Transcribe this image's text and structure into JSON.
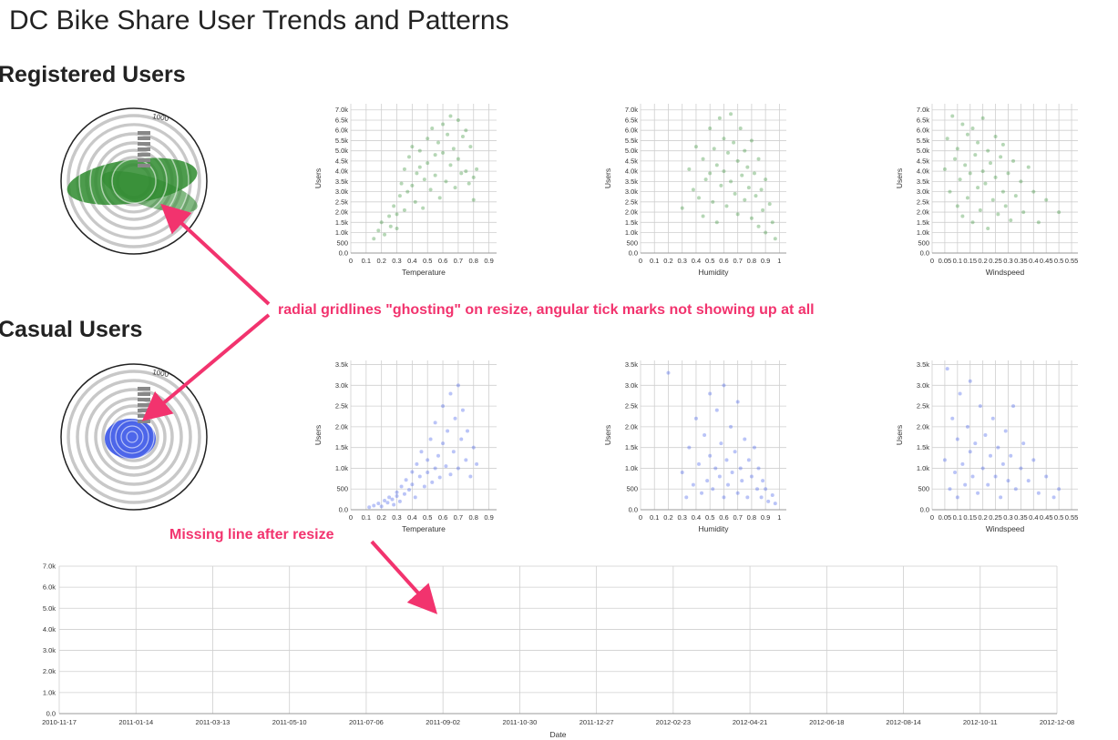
{
  "page": {
    "title": "DC Bike Share User Trends and Patterns"
  },
  "sections": {
    "registered": {
      "title": "Registered Users",
      "color": "#2e8b2e"
    },
    "casual": {
      "title": "Casual Users",
      "color": "#3a55e8"
    }
  },
  "annotations": {
    "radial_note": "radial gridlines \"ghosting\" on resize, angular tick marks not showing up at all",
    "line_note": "Missing line after resize",
    "arrow_color": "#f2336e"
  },
  "radial": {
    "top_label": "1000"
  },
  "chart_data": [
    {
      "id": "reg-temperature",
      "type": "scatter",
      "section": "registered",
      "xlabel": "Temperature",
      "ylabel": "Users",
      "xticks": [
        "0",
        "0.1",
        "0.2",
        "0.3",
        "0.4",
        "0.5",
        "0.6",
        "0.7",
        "0.8",
        "0.9"
      ],
      "yticks": [
        "0.0",
        "500",
        "1.0k",
        "1.5k",
        "2.0k",
        "2.5k",
        "3.0k",
        "3.5k",
        "4.0k",
        "4.5k",
        "5.0k",
        "5.5k",
        "6.0k",
        "6.5k",
        "7.0k"
      ],
      "xlim": [
        0,
        0.95
      ],
      "ylim": [
        0,
        7300
      ],
      "points": [
        [
          0.15,
          700
        ],
        [
          0.18,
          1100
        ],
        [
          0.2,
          1500
        ],
        [
          0.22,
          900
        ],
        [
          0.25,
          1800
        ],
        [
          0.26,
          1300
        ],
        [
          0.28,
          2300
        ],
        [
          0.3,
          1900
        ],
        [
          0.3,
          1200
        ],
        [
          0.32,
          2800
        ],
        [
          0.33,
          3400
        ],
        [
          0.35,
          2100
        ],
        [
          0.35,
          4100
        ],
        [
          0.37,
          3000
        ],
        [
          0.38,
          4700
        ],
        [
          0.4,
          5200
        ],
        [
          0.4,
          3300
        ],
        [
          0.42,
          2500
        ],
        [
          0.43,
          3900
        ],
        [
          0.45,
          5000
        ],
        [
          0.45,
          4200
        ],
        [
          0.47,
          2200
        ],
        [
          0.48,
          3600
        ],
        [
          0.5,
          5600
        ],
        [
          0.5,
          4400
        ],
        [
          0.52,
          3100
        ],
        [
          0.53,
          6100
        ],
        [
          0.55,
          4800
        ],
        [
          0.55,
          3800
        ],
        [
          0.57,
          5400
        ],
        [
          0.58,
          2700
        ],
        [
          0.6,
          6300
        ],
        [
          0.6,
          4900
        ],
        [
          0.62,
          3500
        ],
        [
          0.63,
          5800
        ],
        [
          0.65,
          6700
        ],
        [
          0.65,
          4300
        ],
        [
          0.67,
          5100
        ],
        [
          0.68,
          3200
        ],
        [
          0.7,
          6500
        ],
        [
          0.7,
          4600
        ],
        [
          0.72,
          3900
        ],
        [
          0.73,
          5700
        ],
        [
          0.75,
          6000
        ],
        [
          0.75,
          4000
        ],
        [
          0.77,
          3400
        ],
        [
          0.78,
          5200
        ],
        [
          0.8,
          3700
        ],
        [
          0.8,
          2600
        ],
        [
          0.82,
          4100
        ]
      ]
    },
    {
      "id": "reg-humidity",
      "type": "scatter",
      "section": "registered",
      "xlabel": "Humidity",
      "ylabel": "Users",
      "xticks": [
        "0",
        "0.1",
        "0.2",
        "0.3",
        "0.4",
        "0.5",
        "0.6",
        "0.7",
        "0.8",
        "0.9",
        "1"
      ],
      "yticks": [
        "0.0",
        "500",
        "1.0k",
        "1.5k",
        "2.0k",
        "2.5k",
        "3.0k",
        "3.5k",
        "4.0k",
        "4.5k",
        "5.0k",
        "5.5k",
        "6.0k",
        "6.5k",
        "7.0k"
      ],
      "xlim": [
        0,
        1.05
      ],
      "ylim": [
        0,
        7300
      ],
      "points": [
        [
          0.3,
          2200
        ],
        [
          0.35,
          4100
        ],
        [
          0.38,
          3100
        ],
        [
          0.4,
          5200
        ],
        [
          0.42,
          2700
        ],
        [
          0.45,
          4600
        ],
        [
          0.45,
          1800
        ],
        [
          0.47,
          3600
        ],
        [
          0.5,
          6100
        ],
        [
          0.5,
          3900
        ],
        [
          0.52,
          2500
        ],
        [
          0.53,
          5100
        ],
        [
          0.55,
          4300
        ],
        [
          0.55,
          1500
        ],
        [
          0.57,
          6600
        ],
        [
          0.58,
          3300
        ],
        [
          0.6,
          5600
        ],
        [
          0.6,
          4000
        ],
        [
          0.62,
          2300
        ],
        [
          0.63,
          4900
        ],
        [
          0.65,
          6800
        ],
        [
          0.65,
          3500
        ],
        [
          0.67,
          5400
        ],
        [
          0.68,
          2900
        ],
        [
          0.7,
          4500
        ],
        [
          0.7,
          1900
        ],
        [
          0.72,
          6100
        ],
        [
          0.73,
          3800
        ],
        [
          0.75,
          5000
        ],
        [
          0.75,
          2600
        ],
        [
          0.77,
          4200
        ],
        [
          0.78,
          3200
        ],
        [
          0.8,
          5500
        ],
        [
          0.8,
          1700
        ],
        [
          0.82,
          3900
        ],
        [
          0.83,
          2800
        ],
        [
          0.85,
          4600
        ],
        [
          0.85,
          1300
        ],
        [
          0.87,
          3100
        ],
        [
          0.88,
          2100
        ],
        [
          0.9,
          3600
        ],
        [
          0.9,
          1000
        ],
        [
          0.93,
          2400
        ],
        [
          0.95,
          1500
        ],
        [
          0.97,
          700
        ]
      ]
    },
    {
      "id": "reg-windspeed",
      "type": "scatter",
      "section": "registered",
      "xlabel": "Windspeed",
      "ylabel": "Users",
      "xticks": [
        "0",
        "0.05",
        "0.1",
        "0.15",
        "0.2",
        "0.25",
        "0.3",
        "0.35",
        "0.4",
        "0.45",
        "0.5",
        "0.55"
      ],
      "yticks": [
        "0.0",
        "500",
        "1.0k",
        "1.5k",
        "2.0k",
        "2.5k",
        "3.0k",
        "3.5k",
        "4.0k",
        "4.5k",
        "5.0k",
        "5.5k",
        "6.0k",
        "6.5k",
        "7.0k"
      ],
      "xlim": [
        0,
        0.575
      ],
      "ylim": [
        0,
        7300
      ],
      "points": [
        [
          0.05,
          4100
        ],
        [
          0.06,
          5600
        ],
        [
          0.07,
          3000
        ],
        [
          0.08,
          6700
        ],
        [
          0.09,
          4600
        ],
        [
          0.1,
          2300
        ],
        [
          0.1,
          5100
        ],
        [
          0.11,
          3600
        ],
        [
          0.12,
          6300
        ],
        [
          0.12,
          1800
        ],
        [
          0.13,
          4300
        ],
        [
          0.14,
          5800
        ],
        [
          0.14,
          2700
        ],
        [
          0.15,
          3900
        ],
        [
          0.16,
          6100
        ],
        [
          0.16,
          1500
        ],
        [
          0.17,
          4800
        ],
        [
          0.18,
          3200
        ],
        [
          0.18,
          5400
        ],
        [
          0.19,
          2100
        ],
        [
          0.2,
          4000
        ],
        [
          0.2,
          6600
        ],
        [
          0.21,
          3400
        ],
        [
          0.22,
          5000
        ],
        [
          0.22,
          1200
        ],
        [
          0.23,
          4400
        ],
        [
          0.24,
          2600
        ],
        [
          0.25,
          5700
        ],
        [
          0.25,
          3700
        ],
        [
          0.26,
          1900
        ],
        [
          0.27,
          4700
        ],
        [
          0.28,
          3000
        ],
        [
          0.28,
          5300
        ],
        [
          0.29,
          2300
        ],
        [
          0.3,
          3900
        ],
        [
          0.31,
          1600
        ],
        [
          0.32,
          4500
        ],
        [
          0.33,
          2800
        ],
        [
          0.35,
          3500
        ],
        [
          0.36,
          2000
        ],
        [
          0.38,
          4200
        ],
        [
          0.4,
          3000
        ],
        [
          0.42,
          1500
        ],
        [
          0.45,
          2600
        ],
        [
          0.5,
          2000
        ]
      ]
    },
    {
      "id": "cas-temperature",
      "type": "scatter",
      "section": "casual",
      "xlabel": "Temperature",
      "ylabel": "Users",
      "xticks": [
        "0",
        "0.1",
        "0.2",
        "0.3",
        "0.4",
        "0.5",
        "0.6",
        "0.7",
        "0.8",
        "0.9"
      ],
      "yticks": [
        "0.0",
        "500",
        "1.0k",
        "1.5k",
        "2.0k",
        "2.5k",
        "3.0k",
        "3.5k"
      ],
      "xlim": [
        0,
        0.95
      ],
      "ylim": [
        0,
        3600
      ],
      "points": [
        [
          0.12,
          60
        ],
        [
          0.15,
          100
        ],
        [
          0.18,
          150
        ],
        [
          0.2,
          80
        ],
        [
          0.22,
          220
        ],
        [
          0.24,
          170
        ],
        [
          0.25,
          300
        ],
        [
          0.27,
          250
        ],
        [
          0.28,
          120
        ],
        [
          0.3,
          420
        ],
        [
          0.3,
          330
        ],
        [
          0.32,
          200
        ],
        [
          0.33,
          560
        ],
        [
          0.35,
          380
        ],
        [
          0.36,
          720
        ],
        [
          0.38,
          480
        ],
        [
          0.4,
          910
        ],
        [
          0.4,
          610
        ],
        [
          0.42,
          300
        ],
        [
          0.43,
          1100
        ],
        [
          0.45,
          800
        ],
        [
          0.46,
          1400
        ],
        [
          0.48,
          560
        ],
        [
          0.5,
          1200
        ],
        [
          0.5,
          900
        ],
        [
          0.52,
          1700
        ],
        [
          0.53,
          660
        ],
        [
          0.55,
          1000
        ],
        [
          0.55,
          2100
        ],
        [
          0.57,
          1300
        ],
        [
          0.58,
          780
        ],
        [
          0.6,
          1600
        ],
        [
          0.6,
          2500
        ],
        [
          0.62,
          1050
        ],
        [
          0.63,
          1900
        ],
        [
          0.65,
          850
        ],
        [
          0.65,
          2800
        ],
        [
          0.67,
          1400
        ],
        [
          0.68,
          2200
        ],
        [
          0.7,
          1000
        ],
        [
          0.7,
          3000
        ],
        [
          0.72,
          1700
        ],
        [
          0.73,
          2400
        ],
        [
          0.75,
          1200
        ],
        [
          0.76,
          1900
        ],
        [
          0.78,
          800
        ],
        [
          0.8,
          1500
        ],
        [
          0.82,
          1100
        ]
      ]
    },
    {
      "id": "cas-humidity",
      "type": "scatter",
      "section": "casual",
      "xlabel": "Humidity",
      "ylabel": "Users",
      "xticks": [
        "0",
        "0.1",
        "0.2",
        "0.3",
        "0.4",
        "0.5",
        "0.6",
        "0.7",
        "0.8",
        "0.9",
        "1"
      ],
      "yticks": [
        "0.0",
        "500",
        "1.0k",
        "1.5k",
        "2.0k",
        "2.5k",
        "3.0k",
        "3.5k"
      ],
      "xlim": [
        0,
        1.05
      ],
      "ylim": [
        0,
        3600
      ],
      "points": [
        [
          0.2,
          3300
        ],
        [
          0.3,
          900
        ],
        [
          0.33,
          300
        ],
        [
          0.35,
          1500
        ],
        [
          0.38,
          600
        ],
        [
          0.4,
          2200
        ],
        [
          0.42,
          1100
        ],
        [
          0.44,
          400
        ],
        [
          0.46,
          1800
        ],
        [
          0.48,
          700
        ],
        [
          0.5,
          2800
        ],
        [
          0.5,
          1300
        ],
        [
          0.52,
          500
        ],
        [
          0.54,
          1000
        ],
        [
          0.55,
          2400
        ],
        [
          0.57,
          800
        ],
        [
          0.58,
          1600
        ],
        [
          0.6,
          300
        ],
        [
          0.6,
          3000
        ],
        [
          0.62,
          1200
        ],
        [
          0.63,
          600
        ],
        [
          0.65,
          2000
        ],
        [
          0.66,
          900
        ],
        [
          0.68,
          1400
        ],
        [
          0.7,
          400
        ],
        [
          0.7,
          2600
        ],
        [
          0.72,
          1000
        ],
        [
          0.73,
          700
        ],
        [
          0.75,
          1700
        ],
        [
          0.77,
          300
        ],
        [
          0.78,
          1200
        ],
        [
          0.8,
          800
        ],
        [
          0.82,
          1500
        ],
        [
          0.84,
          500
        ],
        [
          0.85,
          1000
        ],
        [
          0.87,
          300
        ],
        [
          0.88,
          700
        ],
        [
          0.9,
          500
        ],
        [
          0.92,
          200
        ],
        [
          0.95,
          350
        ],
        [
          0.97,
          150
        ]
      ]
    },
    {
      "id": "cas-windspeed",
      "type": "scatter",
      "section": "casual",
      "xlabel": "Windspeed",
      "ylabel": "Users",
      "xticks": [
        "0",
        "0.05",
        "0.1",
        "0.15",
        "0.2",
        "0.25",
        "0.3",
        "0.35",
        "0.4",
        "0.45",
        "0.5",
        "0.55"
      ],
      "yticks": [
        "0.0",
        "500",
        "1.0k",
        "1.5k",
        "2.0k",
        "2.5k",
        "3.0k",
        "3.5k"
      ],
      "xlim": [
        0,
        0.575
      ],
      "ylim": [
        0,
        3600
      ],
      "points": [
        [
          0.05,
          1200
        ],
        [
          0.06,
          3400
        ],
        [
          0.07,
          500
        ],
        [
          0.08,
          2200
        ],
        [
          0.09,
          900
        ],
        [
          0.1,
          1700
        ],
        [
          0.1,
          300
        ],
        [
          0.11,
          2800
        ],
        [
          0.12,
          1100
        ],
        [
          0.13,
          600
        ],
        [
          0.14,
          2000
        ],
        [
          0.15,
          1400
        ],
        [
          0.15,
          3100
        ],
        [
          0.16,
          800
        ],
        [
          0.17,
          1600
        ],
        [
          0.18,
          400
        ],
        [
          0.19,
          2500
        ],
        [
          0.2,
          1000
        ],
        [
          0.21,
          1800
        ],
        [
          0.22,
          600
        ],
        [
          0.23,
          1300
        ],
        [
          0.24,
          2200
        ],
        [
          0.25,
          800
        ],
        [
          0.26,
          1500
        ],
        [
          0.27,
          300
        ],
        [
          0.28,
          1100
        ],
        [
          0.29,
          1900
        ],
        [
          0.3,
          700
        ],
        [
          0.31,
          1300
        ],
        [
          0.32,
          2500
        ],
        [
          0.33,
          500
        ],
        [
          0.35,
          1000
        ],
        [
          0.36,
          1600
        ],
        [
          0.38,
          700
        ],
        [
          0.4,
          1200
        ],
        [
          0.42,
          400
        ],
        [
          0.45,
          800
        ],
        [
          0.48,
          300
        ],
        [
          0.5,
          500
        ]
      ]
    },
    {
      "id": "timeline",
      "type": "line",
      "xlabel": "Date",
      "ylabel": "",
      "xticks": [
        "2010-11-17",
        "2011-01-14",
        "2011-03-13",
        "2011-05-10",
        "2011-07-06",
        "2011-09-02",
        "2011-10-30",
        "2011-12-27",
        "2012-02-23",
        "2012-04-21",
        "2012-06-18",
        "2012-08-14",
        "2012-10-11",
        "2012-12-08"
      ],
      "yticks": [
        "0.0",
        "1.0k",
        "2.0k",
        "3.0k",
        "4.0k",
        "5.0k",
        "6.0k",
        "7.0k"
      ],
      "ylim": [
        0,
        7000
      ],
      "series": []
    }
  ]
}
